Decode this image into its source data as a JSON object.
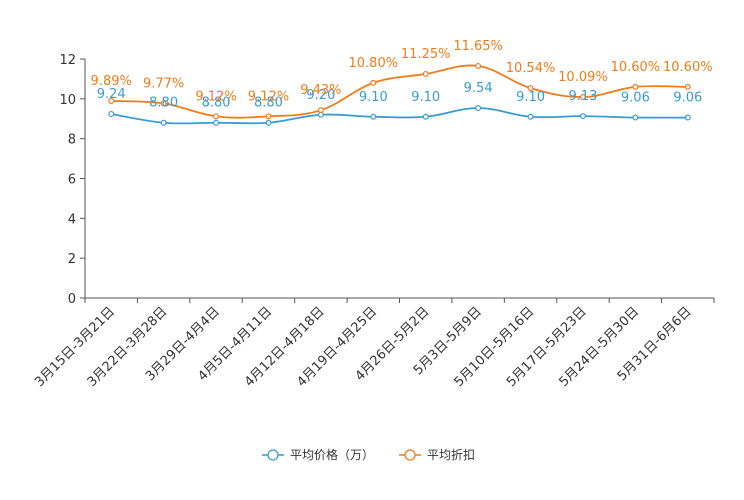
{
  "chart_data": {
    "type": "line",
    "title": "",
    "xlabel": "",
    "ylabel": "",
    "ylim": [
      0,
      12
    ],
    "yticks": [
      0,
      2,
      4,
      6,
      8,
      10,
      12
    ],
    "grid": false,
    "legend_position": "bottom",
    "categories": [
      "3月15日-3月21日",
      "3月22日-3月28日",
      "3月29日-4月4日",
      "4月5日-4月11日",
      "4月12日-4月18日",
      "4月19日-4月25日",
      "4月26日-5月2日",
      "5月3日-5月9日",
      "5月10日-5月16日",
      "5月17日-5月23日",
      "5月24日-5月30日",
      "5月31日-6月6日"
    ],
    "series": [
      {
        "name": "平均价格（万）",
        "color": "#3a9bd0",
        "values": [
          9.24,
          8.8,
          8.8,
          8.8,
          9.2,
          9.1,
          9.1,
          9.54,
          9.1,
          9.13,
          9.06,
          9.06
        ],
        "labels": [
          "9.24",
          "8.80",
          "8.80",
          "8.80",
          "9.20",
          "9.10",
          "9.10",
          "9.54",
          "9.10",
          "9.13",
          "9.06",
          "9.06"
        ]
      },
      {
        "name": "平均折扣",
        "color": "#f07c1a",
        "values": [
          9.89,
          9.77,
          9.12,
          9.12,
          9.43,
          10.8,
          11.25,
          11.65,
          10.54,
          10.09,
          10.6,
          10.6
        ],
        "labels": [
          "9.89%",
          "9.77%",
          "9.12%",
          "9.12%",
          "9.43%",
          "10.80%",
          "11.25%",
          "11.65%",
          "10.54%",
          "10.09%",
          "10.60%",
          "10.60%"
        ]
      }
    ]
  }
}
